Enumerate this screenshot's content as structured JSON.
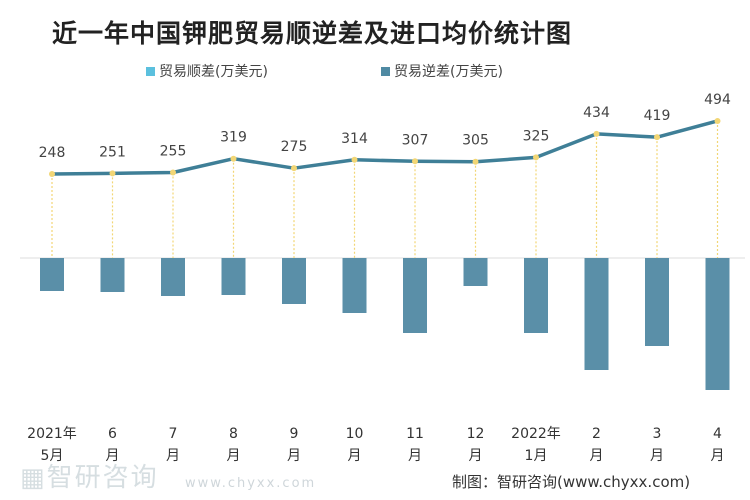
{
  "chart_data": {
    "type": "bar+line",
    "title": "近一年中国钾肥贸易顺逆差及进口均价统计图",
    "categories": [
      [
        "2021年",
        "5月"
      ],
      [
        "6",
        "月"
      ],
      [
        "7",
        "月"
      ],
      [
        "8",
        "月"
      ],
      [
        "9",
        "月"
      ],
      [
        "10",
        "月"
      ],
      [
        "11",
        "月"
      ],
      [
        "12",
        "月"
      ],
      [
        "2022年",
        "1月"
      ],
      [
        "2",
        "月"
      ],
      [
        "3",
        "月"
      ],
      [
        "4",
        "月"
      ]
    ],
    "legend": [
      {
        "name": "贸易顺差(万美元)",
        "color": "#5bc0de"
      },
      {
        "name": "贸易逆差(万美元)",
        "color": "#4f8aa3"
      }
    ],
    "legend_placement": "top",
    "bars": {
      "series": "贸易逆差(万美元)",
      "note_estimated": true,
      "values": [
        -33,
        -34,
        -38,
        -37,
        -46,
        -55,
        -75,
        -28,
        -75,
        -112,
        -88,
        -132
      ],
      "color": "#5a8fa8"
    },
    "line": {
      "values": [
        248,
        251,
        255,
        319,
        275,
        314,
        307,
        305,
        325,
        434,
        419,
        494
      ],
      "color": "#3f7f97",
      "marker_color": "#f2d675"
    },
    "grid": false
  },
  "source": "制图：智研咨询(www.chyxx.com)",
  "watermark": {
    "logo_text": "智研咨询",
    "url": "www.chyxx.com"
  }
}
